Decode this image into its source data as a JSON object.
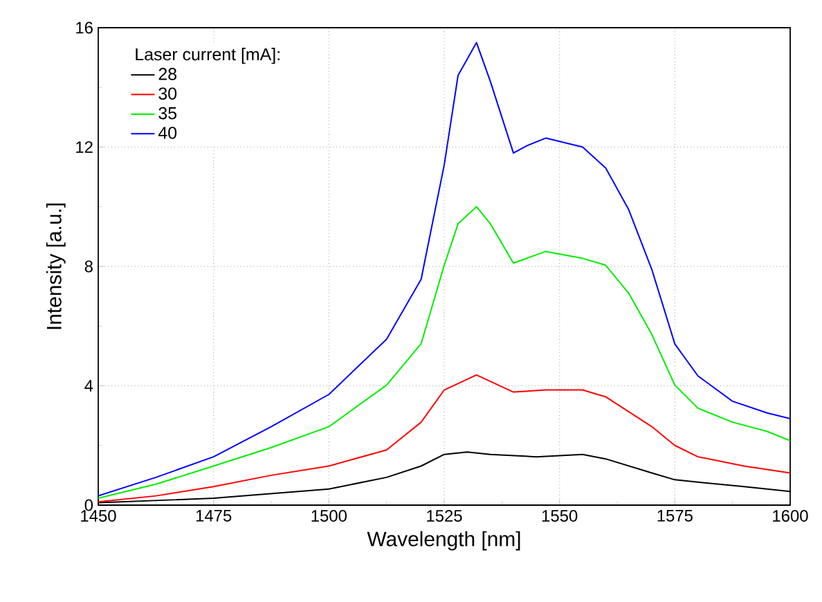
{
  "chart_data": {
    "type": "line",
    "xlabel": "Wavelength [nm]",
    "ylabel": "Intensity [a.u.]",
    "legend_title": "Laser current [mA]:",
    "xlim": [
      1450,
      1600
    ],
    "ylim": [
      0,
      16
    ],
    "xticks": [
      1450,
      1475,
      1500,
      1525,
      1550,
      1575,
      1600
    ],
    "yticks": [
      0,
      4,
      8,
      12,
      16
    ],
    "grid": true,
    "legend": "top left",
    "line_style": "solid",
    "series": [
      {
        "name": "28",
        "color": "#000000",
        "x": [
          1450,
          1475,
          1500,
          1512.5,
          1520,
          1525,
          1530,
          1535,
          1545,
          1555,
          1560,
          1570,
          1575,
          1580,
          1590,
          1600
        ],
        "values": [
          0.08,
          0.23,
          0.54,
          0.93,
          1.31,
          1.7,
          1.78,
          1.7,
          1.62,
          1.7,
          1.55,
          1.08,
          0.85,
          0.77,
          0.62,
          0.46
        ]
      },
      {
        "name": "30",
        "color": "#ff0000",
        "x": [
          1450,
          1462.5,
          1475,
          1487.5,
          1500,
          1512.5,
          1520,
          1525,
          1532,
          1540,
          1547,
          1555,
          1560,
          1570,
          1575,
          1580,
          1590,
          1600
        ],
        "values": [
          0.11,
          0.31,
          0.62,
          1.0,
          1.31,
          1.85,
          2.78,
          3.86,
          4.36,
          3.79,
          3.86,
          3.86,
          3.63,
          2.63,
          2.0,
          1.62,
          1.31,
          1.08
        ]
      },
      {
        "name": "35",
        "color": "#00ee00",
        "x": [
          1450,
          1462.5,
          1475,
          1487.5,
          1500,
          1512.5,
          1520,
          1525,
          1528,
          1532,
          1535,
          1540,
          1547,
          1555,
          1560,
          1565,
          1570,
          1575,
          1580,
          1587.5,
          1595,
          1600
        ],
        "values": [
          0.23,
          0.7,
          1.31,
          1.93,
          2.63,
          4.02,
          5.41,
          8.04,
          9.43,
          10.0,
          9.43,
          8.11,
          8.5,
          8.27,
          8.04,
          7.1,
          5.72,
          4.02,
          3.25,
          2.78,
          2.47,
          2.16
        ]
      },
      {
        "name": "40",
        "color": "#0000ff",
        "x": [
          1450,
          1462.5,
          1475,
          1487.5,
          1500,
          1512.5,
          1520,
          1525,
          1528,
          1532,
          1535,
          1540,
          1543,
          1547,
          1555,
          1560,
          1565,
          1570,
          1575,
          1580,
          1587.5,
          1595,
          1600
        ],
        "values": [
          0.31,
          0.93,
          1.62,
          2.63,
          3.71,
          5.56,
          7.57,
          11.4,
          14.4,
          15.5,
          14.2,
          11.8,
          12.05,
          12.3,
          12.0,
          11.3,
          9.9,
          7.9,
          5.4,
          4.33,
          3.48,
          3.09,
          2.9
        ]
      }
    ]
  }
}
